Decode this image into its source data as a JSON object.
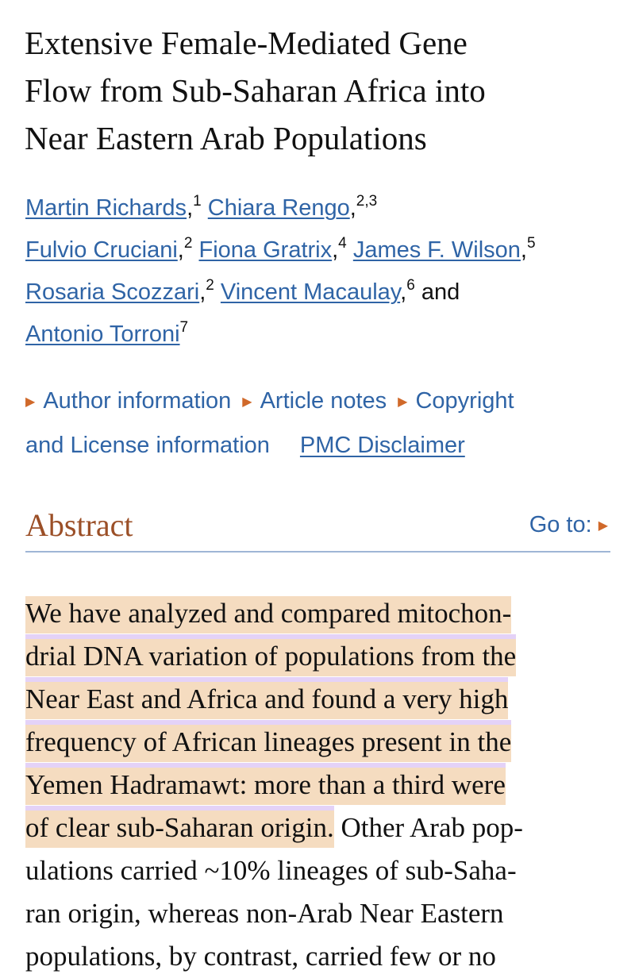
{
  "title_lines": [
    "Extensive Female-Mediated Gene",
    "Flow from Sub-Saharan Africa into",
    "Near Eastern Arab Populations"
  ],
  "authors": [
    {
      "name": "Martin Richards",
      "aff": "1"
    },
    {
      "name": "Chiara Rengo",
      "aff": "2,3"
    },
    {
      "name": "Fulvio Cruciani",
      "aff": "2"
    },
    {
      "name": "Fiona Gratrix",
      "aff": "4"
    },
    {
      "name": "James F. Wilson",
      "aff": "5"
    },
    {
      "name": "Rosaria Scozzari",
      "aff": "2"
    },
    {
      "name": "Vincent Macaulay",
      "aff": "6"
    },
    {
      "name": "Antonio Torroni",
      "aff": "7"
    }
  ],
  "and_word": "and",
  "meta_links": {
    "author_info": "Author information",
    "article_notes": "Article notes",
    "copyright_1": "Copyright",
    "copyright_2": "and License information",
    "disclaimer": "PMC Disclaimer"
  },
  "abstract": {
    "heading": "Abstract",
    "goto": "Go to:",
    "lines": [
      {
        "hl": "We have analyzed and compared mitochon-",
        "rest": ""
      },
      {
        "hl": "drial DNA variation of populations from the",
        "rest": ""
      },
      {
        "hl": "Near East and Africa and found a very high",
        "rest": ""
      },
      {
        "hl": "frequency of African lineages present in the",
        "rest": ""
      },
      {
        "hl": "Yemen Hadramawt: more than a third were",
        "rest": ""
      },
      {
        "hl": "of clear sub-Saharan origin.",
        "rest": " Other Arab pop-"
      },
      {
        "hl": "",
        "rest": "ulations carried ~10% lineages of sub-Saha-"
      },
      {
        "hl": "",
        "rest": "ran origin, whereas non-Arab Near Eastern"
      },
      {
        "hl": "",
        "rest": "populations, by contrast, carried few or no"
      }
    ]
  },
  "colors": {
    "link": "#2f64a6",
    "heading": "#9b4f27",
    "highlight": "#f5dcc0",
    "triangle": "#d0692a"
  }
}
